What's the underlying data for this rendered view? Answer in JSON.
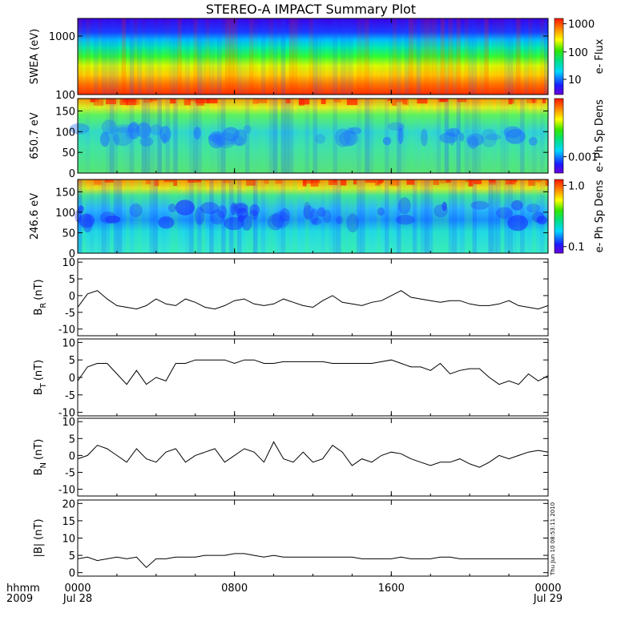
{
  "title": "STEREO-A IMPACT Summary Plot",
  "stamp": "Thu Jun 10 08:53:11 2010",
  "x_axis": {
    "label_line1": "hhmm",
    "label_line2": "2009",
    "ticks": [
      {
        "hours": 0,
        "l1": "0000",
        "l2": "Jul 28"
      },
      {
        "hours": 8,
        "l1": "0800",
        "l2": ""
      },
      {
        "hours": 16,
        "l1": "1600",
        "l2": ""
      },
      {
        "hours": 24,
        "l1": "0000",
        "l2": "Jul 29"
      }
    ]
  },
  "chart_data": [
    {
      "type": "heatmap",
      "name": "swea",
      "ylabel": "SWEA (eV)",
      "yscale": "log",
      "ylim": [
        100,
        2000
      ],
      "yticks": [
        {
          "v": 100,
          "label": "100"
        },
        {
          "v": 1000,
          "label": "1000"
        }
      ],
      "colorbar": {
        "label": "e- Flux",
        "scale": "log",
        "ticks": [
          "10",
          "100",
          "1000"
        ]
      }
    },
    {
      "type": "heatmap",
      "name": "pad650",
      "ylabel": "650.7 eV",
      "ylim": [
        0,
        180
      ],
      "yticks": [
        0,
        50,
        100,
        150
      ],
      "colorbar": {
        "label": "e- Ph Sp Dens",
        "scale": "log",
        "ticks": [
          "0.001"
        ]
      }
    },
    {
      "type": "heatmap",
      "name": "pad246",
      "ylabel": "246.6 eV",
      "ylim": [
        0,
        180
      ],
      "yticks": [
        0,
        50,
        100,
        150
      ],
      "colorbar": {
        "label": "e- Ph Sp Dens",
        "scale": "log",
        "ticks": [
          "0.1",
          "1.0"
        ]
      }
    },
    {
      "type": "line",
      "name": "br",
      "ylabel_main": "B",
      "ylabel_sub": "R",
      "ylabel_unit": "(nT)",
      "ylim": [
        -12,
        11
      ],
      "yticks": [
        -10,
        -5,
        0,
        5,
        10
      ],
      "x_hours": [
        0,
        0.5,
        1,
        1.5,
        2,
        2.5,
        3,
        3.5,
        4,
        4.5,
        5,
        5.5,
        6,
        6.5,
        7,
        7.5,
        8,
        8.5,
        9,
        9.5,
        10,
        10.5,
        11,
        11.5,
        12,
        12.5,
        13,
        13.5,
        14,
        14.5,
        15,
        15.5,
        16,
        16.5,
        17,
        17.5,
        18,
        18.5,
        19,
        19.5,
        20,
        20.5,
        21,
        21.5,
        22,
        22.5,
        23,
        23.5,
        24
      ],
      "values": [
        -3.5,
        0.5,
        1.5,
        -1,
        -3,
        -3.5,
        -4,
        -3,
        -1,
        -2.5,
        -3,
        -1,
        -2,
        -3.5,
        -4,
        -3,
        -1.5,
        -1,
        -2.5,
        -3,
        -2.5,
        -1,
        -2,
        -3,
        -3.5,
        -1.5,
        0,
        -2,
        -2.5,
        -3,
        -2,
        -1.5,
        0,
        1.5,
        -0.5,
        -1,
        -1.5,
        -2,
        -1.5,
        -1.5,
        -2.5,
        -3,
        -3,
        -2.5,
        -1.5,
        -3,
        -3.5,
        -4,
        -3
      ]
    },
    {
      "type": "line",
      "name": "bt",
      "ylabel_main": "B",
      "ylabel_sub": "T",
      "ylabel_unit": "(nT)",
      "ylim": [
        -11,
        11
      ],
      "yticks": [
        -10,
        -5,
        0,
        5,
        10
      ],
      "x_hours": [
        0,
        0.5,
        1,
        1.5,
        2,
        2.5,
        3,
        3.5,
        4,
        4.5,
        5,
        5.5,
        6,
        6.5,
        7,
        7.5,
        8,
        8.5,
        9,
        9.5,
        10,
        10.5,
        11,
        11.5,
        12,
        12.5,
        13,
        13.5,
        14,
        14.5,
        15,
        15.5,
        16,
        16.5,
        17,
        17.5,
        18,
        18.5,
        19,
        19.5,
        20,
        20.5,
        21,
        21.5,
        22,
        22.5,
        23,
        23.5,
        24
      ],
      "values": [
        -1,
        3,
        4,
        4,
        1,
        -2,
        2,
        -2,
        0,
        -1,
        4,
        4,
        5,
        5,
        5,
        5,
        4,
        5,
        5,
        4,
        4,
        4.5,
        4.5,
        4.5,
        4.5,
        4.5,
        4,
        4,
        4,
        4,
        4,
        4.5,
        5,
        4,
        3,
        3,
        2,
        4,
        1,
        2,
        2.5,
        2.5,
        0,
        -2,
        -1,
        -2,
        1,
        -1,
        0.5
      ]
    },
    {
      "type": "line",
      "name": "bn",
      "ylabel_main": "B",
      "ylabel_sub": "N",
      "ylabel_unit": "(nT)",
      "ylim": [
        -12,
        11
      ],
      "yticks": [
        -10,
        -5,
        0,
        5,
        10
      ],
      "x_hours": [
        0,
        0.5,
        1,
        1.5,
        2,
        2.5,
        3,
        3.5,
        4,
        4.5,
        5,
        5.5,
        6,
        6.5,
        7,
        7.5,
        8,
        8.5,
        9,
        9.5,
        10,
        10.5,
        11,
        11.5,
        12,
        12.5,
        13,
        13.5,
        14,
        14.5,
        15,
        15.5,
        16,
        16.5,
        17,
        17.5,
        18,
        18.5,
        19,
        19.5,
        20,
        20.5,
        21,
        21.5,
        22,
        22.5,
        23,
        23.5,
        24
      ],
      "values": [
        -1,
        0,
        3,
        2,
        0,
        -2,
        2,
        -1,
        -2,
        1,
        2,
        -2,
        0,
        1,
        2,
        -2,
        0,
        2,
        1,
        -2,
        4,
        -1,
        -2,
        1,
        -2,
        -1,
        3,
        1,
        -3,
        -1,
        -2,
        0,
        1,
        0.5,
        -1,
        -2,
        -3,
        -2,
        -2,
        -1,
        -2.5,
        -3.5,
        -2,
        0,
        -1,
        0,
        1,
        1.5,
        1
      ]
    },
    {
      "type": "line",
      "name": "bmag",
      "ylabel_main": "|B|",
      "ylabel_sub": "",
      "ylabel_unit": "(nT)",
      "ylim": [
        -1,
        21
      ],
      "yticks": [
        0,
        5,
        10,
        15,
        20
      ],
      "x_hours": [
        0,
        0.5,
        1,
        1.5,
        2,
        2.5,
        3,
        3.5,
        4,
        4.5,
        5,
        5.5,
        6,
        6.5,
        7,
        7.5,
        8,
        8.5,
        9,
        9.5,
        10,
        10.5,
        11,
        11.5,
        12,
        12.5,
        13,
        13.5,
        14,
        14.5,
        15,
        15.5,
        16,
        16.5,
        17,
        17.5,
        18,
        18.5,
        19,
        19.5,
        20,
        20.5,
        21,
        21.5,
        22,
        22.5,
        23,
        23.5,
        24
      ],
      "values": [
        4,
        4.5,
        3.5,
        4,
        4.5,
        4,
        4.5,
        1.5,
        4,
        4,
        4.5,
        4.5,
        4.5,
        5,
        5,
        5,
        5.5,
        5.5,
        5,
        4.5,
        5,
        4.5,
        4.5,
        4.5,
        4.5,
        4.5,
        4.5,
        4.5,
        4.5,
        4,
        4,
        4,
        4,
        4.5,
        4,
        4,
        4,
        4.5,
        4.5,
        4,
        4,
        4,
        4,
        4,
        4,
        4,
        4,
        4,
        4
      ]
    }
  ]
}
